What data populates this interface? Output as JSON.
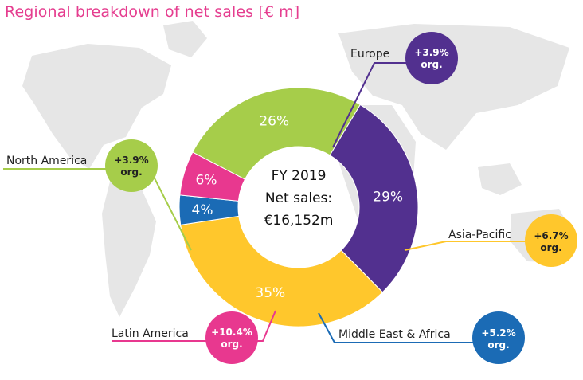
{
  "title": "Regional breakdown of net sales [€ m]",
  "center": {
    "line1": "FY 2019",
    "line2": "Net sales:",
    "line3": "€16,152m"
  },
  "chart_data": {
    "type": "pie",
    "title": "Regional breakdown of net sales [€ m]",
    "total": "€16,152m",
    "period": "FY 2019",
    "slices": [
      {
        "name": "Europe",
        "value": 29,
        "label": "29%",
        "growth": "+3.9%",
        "growth_note": "org.",
        "color": "#52308f"
      },
      {
        "name": "Asia-Pacific",
        "value": 35,
        "label": "35%",
        "growth": "+6.7%",
        "growth_note": "org.",
        "color": "#ffc72c"
      },
      {
        "name": "Middle East & Africa",
        "value": 4,
        "label": "4%",
        "growth": "+5.2%",
        "growth_note": "org.",
        "color": "#1b6bb5"
      },
      {
        "name": "Latin America",
        "value": 6,
        "label": "6%",
        "growth": "+10.4%",
        "growth_note": "org.",
        "color": "#e8388f"
      },
      {
        "name": "North America",
        "value": 26,
        "label": "26%",
        "growth": "+3.9%",
        "growth_note": "org.",
        "color": "#a6cd4a"
      }
    ]
  }
}
